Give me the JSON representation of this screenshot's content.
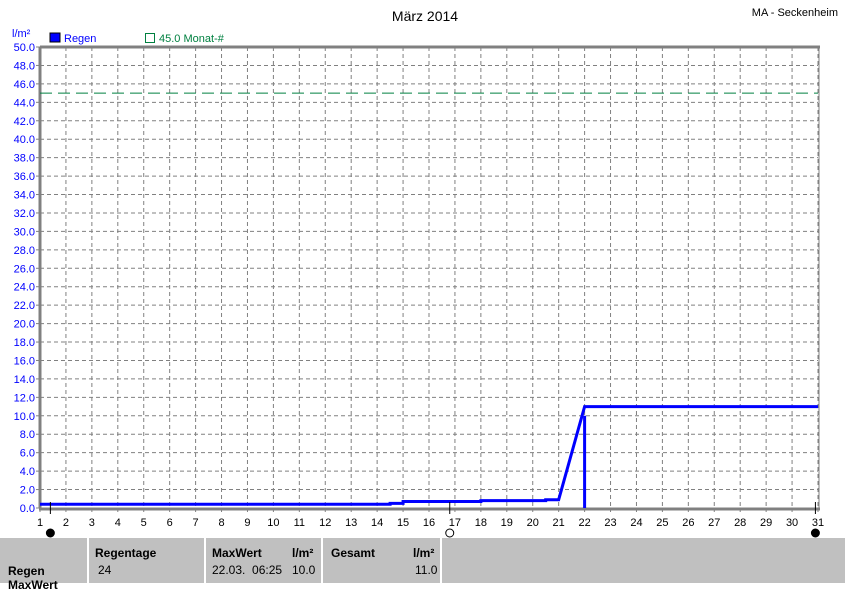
{
  "chart_data": {
    "type": "line",
    "title": "März 2014",
    "station": "MA - Seckenheim",
    "ylabel": "l/m²",
    "ylim": [
      0,
      50
    ],
    "yticks": [
      "0.0",
      "2.0",
      "4.0",
      "6.0",
      "8.0",
      "10.0",
      "12.0",
      "14.0",
      "16.0",
      "18.0",
      "20.0",
      "22.0",
      "24.0",
      "26.0",
      "28.0",
      "30.0",
      "32.0",
      "34.0",
      "36.0",
      "38.0",
      "40.0",
      "42.0",
      "44.0",
      "46.0",
      "48.0",
      "50.0"
    ],
    "xlim": [
      1,
      31
    ],
    "xticks": [
      "1",
      "2",
      "3",
      "4",
      "5",
      "6",
      "7",
      "8",
      "9",
      "10",
      "11",
      "12",
      "13",
      "14",
      "15",
      "16",
      "17",
      "18",
      "19",
      "20",
      "21",
      "22",
      "23",
      "24",
      "25",
      "26",
      "27",
      "28",
      "29",
      "30",
      "31"
    ],
    "grid": true,
    "legend": [
      "Regen",
      "45.0 Monat-#"
    ],
    "colors": {
      "series": "#0000ff",
      "reference": "#008040",
      "axis": "#808080"
    },
    "series": [
      {
        "name": "Regen",
        "x": [
          1,
          14.5,
          14.5,
          15,
          15,
          18,
          18,
          20.5,
          20.5,
          21,
          22,
          31
        ],
        "y": [
          0.4,
          0.4,
          0.5,
          0.5,
          0.7,
          0.7,
          0.8,
          0.8,
          0.9,
          0.9,
          11.0,
          11.0
        ]
      }
    ],
    "daily_bars": [
      {
        "x": 22,
        "y": 10.0
      }
    ],
    "reference_line": {
      "name": "45.0 Monat-#",
      "y": 45.0
    },
    "moon_phases": [
      {
        "day": 1.4,
        "phase": "full"
      },
      {
        "day": 16.8,
        "phase": "new"
      },
      {
        "day": 30.9,
        "phase": "full"
      }
    ]
  },
  "footer": {
    "row_label": "Regen",
    "row_label2": "MaxWert",
    "regentage_header": "Regentage",
    "regentage_value": "24",
    "maxwert_header": "MaxWert",
    "maxwert_unit": "l/m²",
    "maxwert_time": "22.03.  06:25",
    "maxwert_value": "10.0",
    "gesamt_header": "Gesamt",
    "gesamt_unit": "l/m²",
    "gesamt_value": "11.0"
  }
}
